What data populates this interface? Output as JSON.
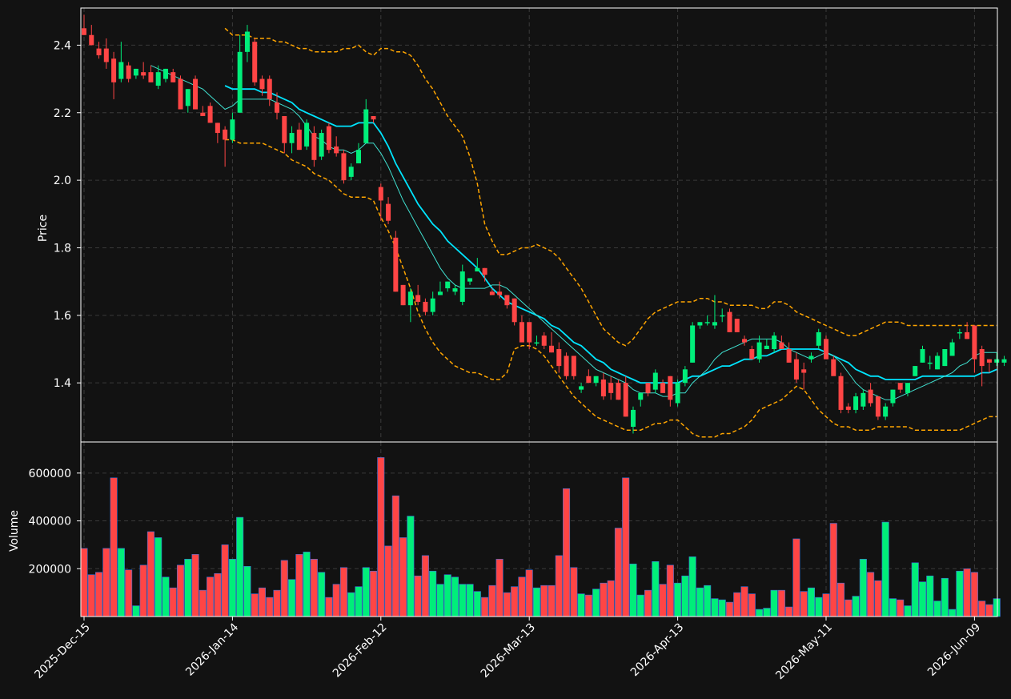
{
  "chart_data": {
    "type": "candlestick",
    "x_tick_labels": [
      "2025-Dec-15",
      "2026-Jan-14",
      "2026-Feb-12",
      "2026-Mar-13",
      "2026-Apr-13",
      "2026-May-11",
      "2026-Jun-09"
    ],
    "x_tick_bar_index": [
      0,
      20,
      40,
      60,
      80,
      100,
      120
    ],
    "price_panel": {
      "ylabel": "Price",
      "ylim": [
        1.225,
        2.51
      ],
      "y_ticks": [
        1.4,
        1.6,
        1.8,
        2.0,
        2.2,
        2.4
      ],
      "grid": true
    },
    "volume_panel": {
      "ylabel": "Volume",
      "ylim": [
        0,
        730000
      ],
      "y_ticks": [
        200000,
        400000,
        600000
      ],
      "grid": true
    },
    "colors": {
      "up": "#00ee7a",
      "down": "#ff4545",
      "volume_edge": "#3b6fd9",
      "ma_fast": "#40e0d0",
      "ma_slow": "#00e5ff",
      "bollinger": "#ffa500",
      "background": "#121212",
      "grid": "#3a3a3a",
      "text": "#ffffff"
    },
    "ohlc": [
      [
        2.45,
        2.49,
        2.43,
        2.43
      ],
      [
        2.43,
        2.46,
        2.4,
        2.4
      ],
      [
        2.39,
        2.41,
        2.36,
        2.37
      ],
      [
        2.39,
        2.42,
        2.33,
        2.35
      ],
      [
        2.36,
        2.38,
        2.24,
        2.29
      ],
      [
        2.3,
        2.41,
        2.29,
        2.35
      ],
      [
        2.34,
        2.35,
        2.29,
        2.3
      ],
      [
        2.31,
        2.33,
        2.3,
        2.33
      ],
      [
        2.32,
        2.35,
        2.3,
        2.31
      ],
      [
        2.32,
        2.34,
        2.29,
        2.29
      ],
      [
        2.28,
        2.34,
        2.27,
        2.32
      ],
      [
        2.3,
        2.33,
        2.29,
        2.33
      ],
      [
        2.32,
        2.33,
        2.29,
        2.29
      ],
      [
        2.3,
        2.31,
        2.21,
        2.21
      ],
      [
        2.22,
        2.27,
        2.2,
        2.27
      ],
      [
        2.3,
        2.31,
        2.21,
        2.21
      ],
      [
        2.2,
        2.22,
        2.19,
        2.19
      ],
      [
        2.22,
        2.23,
        2.17,
        2.17
      ],
      [
        2.17,
        2.17,
        2.11,
        2.14
      ],
      [
        2.15,
        2.16,
        2.04,
        2.12
      ],
      [
        2.12,
        2.2,
        2.11,
        2.18
      ],
      [
        2.2,
        2.43,
        2.2,
        2.38
      ],
      [
        2.38,
        2.46,
        2.35,
        2.44
      ],
      [
        2.41,
        2.42,
        2.28,
        2.29
      ],
      [
        2.3,
        2.31,
        2.25,
        2.27
      ],
      [
        2.3,
        2.31,
        2.22,
        2.24
      ],
      [
        2.23,
        2.26,
        2.18,
        2.2
      ],
      [
        2.19,
        2.19,
        2.08,
        2.11
      ],
      [
        2.11,
        2.16,
        2.08,
        2.14
      ],
      [
        2.15,
        2.17,
        2.09,
        2.09
      ],
      [
        2.1,
        2.18,
        2.09,
        2.17
      ],
      [
        2.14,
        2.16,
        2.04,
        2.06
      ],
      [
        2.07,
        2.15,
        2.06,
        2.14
      ],
      [
        2.16,
        2.17,
        2.08,
        2.09
      ],
      [
        2.1,
        2.13,
        2.07,
        2.08
      ],
      [
        2.08,
        2.09,
        1.99,
        2.0
      ],
      [
        2.01,
        2.05,
        2.0,
        2.04
      ],
      [
        2.05,
        2.11,
        2.05,
        2.09
      ],
      [
        2.11,
        2.24,
        2.11,
        2.21
      ],
      [
        2.19,
        2.19,
        2.17,
        2.18
      ],
      [
        1.98,
        1.99,
        1.88,
        1.94
      ],
      [
        1.93,
        1.95,
        1.87,
        1.88
      ],
      [
        1.83,
        1.85,
        1.67,
        1.67
      ],
      [
        1.69,
        1.69,
        1.63,
        1.63
      ],
      [
        1.63,
        1.68,
        1.58,
        1.67
      ],
      [
        1.66,
        1.69,
        1.63,
        1.64
      ],
      [
        1.64,
        1.65,
        1.6,
        1.61
      ],
      [
        1.61,
        1.67,
        1.6,
        1.65
      ],
      [
        1.66,
        1.7,
        1.66,
        1.67
      ],
      [
        1.68,
        1.7,
        1.67,
        1.7
      ],
      [
        1.67,
        1.69,
        1.66,
        1.68
      ],
      [
        1.64,
        1.75,
        1.63,
        1.73
      ],
      [
        1.7,
        1.71,
        1.69,
        1.71
      ],
      [
        1.73,
        1.77,
        1.73,
        1.74
      ],
      [
        1.74,
        1.74,
        1.7,
        1.72
      ],
      [
        1.67,
        1.68,
        1.66,
        1.66
      ],
      [
        1.67,
        1.7,
        1.65,
        1.66
      ],
      [
        1.66,
        1.66,
        1.62,
        1.63
      ],
      [
        1.65,
        1.65,
        1.57,
        1.58
      ],
      [
        1.58,
        1.6,
        1.52,
        1.52
      ],
      [
        1.58,
        1.58,
        1.5,
        1.52
      ],
      [
        1.52,
        1.54,
        1.51,
        1.52
      ],
      [
        1.54,
        1.55,
        1.5,
        1.51
      ],
      [
        1.51,
        1.55,
        1.49,
        1.49
      ],
      [
        1.5,
        1.52,
        1.43,
        1.45
      ],
      [
        1.48,
        1.49,
        1.41,
        1.42
      ],
      [
        1.48,
        1.48,
        1.41,
        1.42
      ],
      [
        1.38,
        1.4,
        1.37,
        1.39
      ],
      [
        1.42,
        1.44,
        1.4,
        1.4
      ],
      [
        1.4,
        1.42,
        1.39,
        1.42
      ],
      [
        1.41,
        1.43,
        1.35,
        1.36
      ],
      [
        1.4,
        1.42,
        1.35,
        1.37
      ],
      [
        1.4,
        1.41,
        1.35,
        1.35
      ],
      [
        1.4,
        1.42,
        1.3,
        1.3
      ],
      [
        1.27,
        1.33,
        1.25,
        1.32
      ],
      [
        1.35,
        1.37,
        1.33,
        1.37
      ],
      [
        1.4,
        1.4,
        1.36,
        1.37
      ],
      [
        1.38,
        1.44,
        1.37,
        1.43
      ],
      [
        1.4,
        1.41,
        1.37,
        1.37
      ],
      [
        1.42,
        1.42,
        1.33,
        1.35
      ],
      [
        1.34,
        1.41,
        1.33,
        1.4
      ],
      [
        1.4,
        1.45,
        1.39,
        1.44
      ],
      [
        1.46,
        1.58,
        1.46,
        1.57
      ],
      [
        1.57,
        1.58,
        1.56,
        1.58
      ],
      [
        1.58,
        1.6,
        1.57,
        1.58
      ],
      [
        1.57,
        1.66,
        1.56,
        1.58
      ],
      [
        1.6,
        1.62,
        1.58,
        1.6
      ],
      [
        1.61,
        1.62,
        1.55,
        1.55
      ],
      [
        1.59,
        1.59,
        1.55,
        1.55
      ],
      [
        1.53,
        1.54,
        1.51,
        1.52
      ],
      [
        1.5,
        1.51,
        1.47,
        1.47
      ],
      [
        1.47,
        1.54,
        1.46,
        1.52
      ],
      [
        1.5,
        1.53,
        1.5,
        1.51
      ],
      [
        1.5,
        1.55,
        1.49,
        1.54
      ],
      [
        1.52,
        1.54,
        1.5,
        1.5
      ],
      [
        1.5,
        1.52,
        1.46,
        1.46
      ],
      [
        1.47,
        1.49,
        1.4,
        1.41
      ],
      [
        1.44,
        1.46,
        1.38,
        1.43
      ],
      [
        1.47,
        1.49,
        1.46,
        1.48
      ],
      [
        1.51,
        1.56,
        1.5,
        1.55
      ],
      [
        1.53,
        1.54,
        1.47,
        1.47
      ],
      [
        1.47,
        1.48,
        1.43,
        1.42
      ],
      [
        1.42,
        1.43,
        1.31,
        1.32
      ],
      [
        1.33,
        1.34,
        1.31,
        1.32
      ],
      [
        1.32,
        1.37,
        1.31,
        1.36
      ],
      [
        1.33,
        1.38,
        1.32,
        1.37
      ],
      [
        1.38,
        1.4,
        1.33,
        1.34
      ],
      [
        1.36,
        1.36,
        1.29,
        1.3
      ],
      [
        1.3,
        1.34,
        1.29,
        1.33
      ],
      [
        1.34,
        1.38,
        1.33,
        1.38
      ],
      [
        1.4,
        1.4,
        1.37,
        1.38
      ],
      [
        1.37,
        1.4,
        1.36,
        1.4
      ],
      [
        1.42,
        1.45,
        1.42,
        1.45
      ],
      [
        1.46,
        1.51,
        1.46,
        1.5
      ],
      [
        1.46,
        1.48,
        1.44,
        1.46
      ],
      [
        1.44,
        1.49,
        1.44,
        1.48
      ],
      [
        1.45,
        1.5,
        1.45,
        1.5
      ],
      [
        1.48,
        1.53,
        1.48,
        1.52
      ],
      [
        1.55,
        1.56,
        1.53,
        1.55
      ],
      [
        1.55,
        1.58,
        1.53,
        1.53
      ],
      [
        1.57,
        1.57,
        1.43,
        1.47
      ],
      [
        1.5,
        1.51,
        1.39,
        1.45
      ],
      [
        1.47,
        1.47,
        1.43,
        1.46
      ],
      [
        1.46,
        1.49,
        1.45,
        1.47
      ],
      [
        1.46,
        1.48,
        1.45,
        1.47
      ]
    ],
    "volume": [
      285000,
      175000,
      185000,
      285000,
      580000,
      285000,
      195000,
      45000,
      215000,
      355000,
      330000,
      165000,
      120000,
      215000,
      240000,
      260000,
      110000,
      165000,
      180000,
      300000,
      240000,
      415000,
      210000,
      95000,
      120000,
      80000,
      110000,
      235000,
      155000,
      260000,
      270000,
      240000,
      185000,
      80000,
      135000,
      205000,
      100000,
      125000,
      205000,
      190000,
      665000,
      295000,
      505000,
      330000,
      420000,
      170000,
      255000,
      190000,
      135000,
      175000,
      165000,
      135000,
      135000,
      105000,
      80000,
      130000,
      240000,
      100000,
      125000,
      165000,
      195000,
      120000,
      130000,
      130000,
      255000,
      535000,
      205000,
      95000,
      90000,
      115000,
      140000,
      150000,
      370000,
      580000,
      220000,
      90000,
      110000,
      230000,
      135000,
      215000,
      140000,
      170000,
      250000,
      120000,
      130000,
      75000,
      70000,
      60000,
      100000,
      125000,
      95000,
      30000,
      35000,
      110000,
      110000,
      40000,
      325000,
      105000,
      120000,
      80000,
      95000,
      390000,
      140000,
      70000,
      85000,
      240000,
      185000,
      150000,
      395000,
      75000,
      70000,
      45000,
      225000,
      145000,
      170000,
      65000,
      160000,
      30000,
      190000,
      200000,
      185000,
      65000,
      50000,
      75000
    ],
    "ma_fast": [
      null,
      null,
      null,
      null,
      null,
      null,
      null,
      null,
      null,
      2.34,
      2.33,
      2.32,
      2.31,
      2.3,
      2.29,
      2.28,
      2.27,
      2.25,
      2.23,
      2.21,
      2.22,
      2.24,
      2.24,
      2.24,
      2.24,
      2.24,
      2.23,
      2.22,
      2.21,
      2.19,
      2.16,
      2.13,
      2.12,
      2.1,
      2.09,
      2.09,
      2.08,
      2.09,
      2.11,
      2.11,
      2.08,
      2.04,
      1.99,
      1.94,
      1.9,
      1.86,
      1.82,
      1.78,
      1.74,
      1.71,
      1.69,
      1.68,
      1.68,
      1.68,
      1.68,
      1.69,
      1.69,
      1.68,
      1.66,
      1.64,
      1.62,
      1.6,
      1.58,
      1.56,
      1.54,
      1.52,
      1.5,
      1.48,
      1.46,
      1.44,
      1.43,
      1.42,
      1.41,
      1.4,
      1.38,
      1.37,
      1.37,
      1.37,
      1.36,
      1.36,
      1.37,
      1.37,
      1.4,
      1.42,
      1.44,
      1.47,
      1.49,
      1.5,
      1.51,
      1.52,
      1.53,
      1.53,
      1.53,
      1.53,
      1.52,
      1.5,
      1.49,
      1.48,
      1.47,
      1.48,
      1.49,
      1.48,
      1.46,
      1.43,
      1.4,
      1.38,
      1.37,
      1.36,
      1.35,
      1.35,
      1.36,
      1.37,
      1.38,
      1.39,
      1.4,
      1.41,
      1.42,
      1.43,
      1.45,
      1.46,
      1.48,
      1.49,
      1.49,
      1.49
    ],
    "ma_slow": [
      null,
      null,
      null,
      null,
      null,
      null,
      null,
      null,
      null,
      null,
      null,
      null,
      null,
      null,
      null,
      null,
      null,
      null,
      null,
      2.28,
      2.27,
      2.27,
      2.27,
      2.27,
      2.26,
      2.26,
      2.25,
      2.24,
      2.23,
      2.21,
      2.2,
      2.19,
      2.18,
      2.17,
      2.16,
      2.16,
      2.16,
      2.17,
      2.17,
      2.17,
      2.14,
      2.1,
      2.05,
      2.01,
      1.97,
      1.93,
      1.9,
      1.87,
      1.85,
      1.82,
      1.8,
      1.78,
      1.76,
      1.74,
      1.71,
      1.68,
      1.66,
      1.64,
      1.63,
      1.62,
      1.61,
      1.6,
      1.59,
      1.57,
      1.56,
      1.54,
      1.52,
      1.51,
      1.49,
      1.47,
      1.46,
      1.44,
      1.43,
      1.42,
      1.41,
      1.4,
      1.4,
      1.4,
      1.4,
      1.4,
      1.4,
      1.41,
      1.42,
      1.42,
      1.43,
      1.44,
      1.45,
      1.45,
      1.46,
      1.47,
      1.47,
      1.48,
      1.48,
      1.49,
      1.5,
      1.5,
      1.5,
      1.5,
      1.5,
      1.5,
      1.49,
      1.48,
      1.47,
      1.46,
      1.44,
      1.43,
      1.42,
      1.42,
      1.41,
      1.41,
      1.41,
      1.41,
      1.41,
      1.42,
      1.42,
      1.42,
      1.42,
      1.42,
      1.42,
      1.42,
      1.42,
      1.43,
      1.43,
      1.44
    ],
    "bb_upper": [
      null,
      null,
      null,
      null,
      null,
      null,
      null,
      null,
      null,
      null,
      null,
      null,
      null,
      null,
      null,
      null,
      null,
      null,
      null,
      2.45,
      2.43,
      2.43,
      2.43,
      2.42,
      2.42,
      2.42,
      2.41,
      2.41,
      2.4,
      2.39,
      2.39,
      2.38,
      2.38,
      2.38,
      2.38,
      2.39,
      2.39,
      2.4,
      2.38,
      2.37,
      2.39,
      2.39,
      2.38,
      2.38,
      2.37,
      2.34,
      2.3,
      2.27,
      2.23,
      2.19,
      2.16,
      2.13,
      2.07,
      1.99,
      1.87,
      1.82,
      1.78,
      1.78,
      1.79,
      1.8,
      1.8,
      1.81,
      1.8,
      1.79,
      1.77,
      1.74,
      1.71,
      1.68,
      1.64,
      1.6,
      1.56,
      1.54,
      1.52,
      1.51,
      1.53,
      1.56,
      1.59,
      1.61,
      1.62,
      1.63,
      1.64,
      1.64,
      1.64,
      1.65,
      1.65,
      1.64,
      1.64,
      1.63,
      1.63,
      1.63,
      1.63,
      1.62,
      1.62,
      1.64,
      1.64,
      1.63,
      1.61,
      1.6,
      1.59,
      1.58,
      1.57,
      1.56,
      1.55,
      1.54,
      1.54,
      1.55,
      1.56,
      1.57,
      1.58,
      1.58,
      1.58,
      1.57,
      1.57,
      1.57,
      1.57,
      1.57,
      1.57,
      1.57,
      1.57,
      1.57,
      1.57,
      1.57,
      1.57,
      1.57
    ],
    "bb_lower": [
      null,
      null,
      null,
      null,
      null,
      null,
      null,
      null,
      null,
      null,
      null,
      null,
      null,
      null,
      null,
      null,
      null,
      null,
      null,
      2.12,
      2.12,
      2.11,
      2.11,
      2.11,
      2.11,
      2.1,
      2.09,
      2.08,
      2.06,
      2.05,
      2.04,
      2.02,
      2.01,
      2.0,
      1.98,
      1.96,
      1.95,
      1.95,
      1.95,
      1.94,
      1.89,
      1.85,
      1.8,
      1.74,
      1.68,
      1.61,
      1.56,
      1.52,
      1.49,
      1.47,
      1.45,
      1.44,
      1.43,
      1.43,
      1.42,
      1.41,
      1.41,
      1.43,
      1.5,
      1.51,
      1.51,
      1.5,
      1.48,
      1.45,
      1.42,
      1.39,
      1.36,
      1.34,
      1.32,
      1.3,
      1.29,
      1.28,
      1.27,
      1.26,
      1.26,
      1.26,
      1.27,
      1.28,
      1.28,
      1.29,
      1.29,
      1.27,
      1.25,
      1.24,
      1.24,
      1.24,
      1.25,
      1.25,
      1.26,
      1.27,
      1.29,
      1.32,
      1.33,
      1.34,
      1.35,
      1.37,
      1.39,
      1.38,
      1.35,
      1.32,
      1.3,
      1.28,
      1.27,
      1.27,
      1.26,
      1.26,
      1.26,
      1.27,
      1.27,
      1.27,
      1.27,
      1.27,
      1.26,
      1.26,
      1.26,
      1.26,
      1.26,
      1.26,
      1.26,
      1.27,
      1.28,
      1.29,
      1.3,
      1.3
    ]
  }
}
